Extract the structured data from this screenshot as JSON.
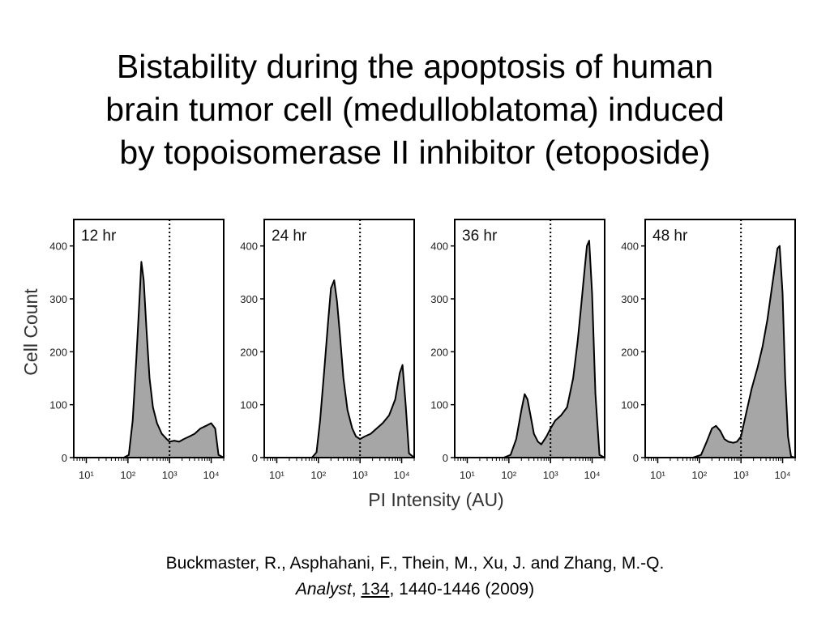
{
  "slide": {
    "title_lines": [
      "Bistability during the apoptosis of human",
      "brain tumor cell (medulloblatoma) induced",
      "by topoisomerase II inhibitor (etoposide)"
    ],
    "citation": {
      "authors": "Buckmaster, R., Asphahani, F., Thein, M., Xu, J. and Zhang, M.-Q.",
      "journal": "Analyst",
      "sep1": ", ",
      "volume": "134",
      "pages_year": ", 1440-1446 (2009)"
    }
  },
  "chart_data": {
    "type": "area",
    "ylabel": "Cell Count",
    "xlabel": "PI Intensity (AU)",
    "x_scale": "log",
    "xlim": [
      5,
      20000
    ],
    "ylim": [
      0,
      450
    ],
    "x_ticks": [
      10,
      100,
      1000,
      10000
    ],
    "x_tick_labels": [
      "10¹",
      "10²",
      "10³",
      "10⁴"
    ],
    "y_ticks": [
      0,
      100,
      200,
      300,
      400
    ],
    "threshold_x": 1000,
    "fill_color": "#a6a6a6",
    "line_color": "#000000",
    "panels": [
      {
        "label": "12 hr",
        "x": [
          5,
          80,
          105,
          130,
          160,
          190,
          210,
          240,
          280,
          330,
          400,
          500,
          650,
          850,
          1000,
          1300,
          1700,
          2200,
          3000,
          4000,
          5500,
          7500,
          10000,
          12500,
          15000,
          20000
        ],
        "y": [
          0,
          0,
          5,
          70,
          190,
          300,
          370,
          335,
          240,
          150,
          95,
          65,
          45,
          35,
          30,
          32,
          30,
          35,
          40,
          45,
          55,
          60,
          65,
          55,
          5,
          0
        ]
      },
      {
        "label": "24 hr",
        "x": [
          5,
          70,
          90,
          110,
          140,
          170,
          200,
          240,
          280,
          330,
          400,
          500,
          650,
          800,
          1000,
          1300,
          1800,
          2500,
          3500,
          5000,
          7000,
          9000,
          10500,
          12500,
          15000,
          20000
        ],
        "y": [
          0,
          0,
          10,
          70,
          170,
          255,
          320,
          335,
          295,
          230,
          150,
          90,
          55,
          40,
          35,
          40,
          45,
          55,
          65,
          80,
          110,
          160,
          175,
          100,
          8,
          0
        ]
      },
      {
        "label": "36 hr",
        "x": [
          5,
          75,
          110,
          150,
          200,
          240,
          280,
          330,
          400,
          500,
          600,
          800,
          1000,
          1300,
          1800,
          2500,
          3500,
          4500,
          5500,
          6500,
          7500,
          8500,
          10000,
          12000,
          15000,
          20000
        ],
        "y": [
          0,
          0,
          5,
          35,
          90,
          120,
          110,
          80,
          45,
          30,
          25,
          40,
          55,
          70,
          80,
          95,
          150,
          220,
          290,
          350,
          400,
          410,
          310,
          120,
          5,
          0
        ]
      },
      {
        "label": "48 hr",
        "x": [
          5,
          70,
          110,
          150,
          200,
          250,
          320,
          400,
          500,
          650,
          800,
          1000,
          1300,
          1800,
          2500,
          3300,
          4300,
          5500,
          6500,
          7500,
          8500,
          10000,
          11500,
          13500,
          16000,
          20000
        ],
        "y": [
          0,
          0,
          5,
          30,
          55,
          60,
          50,
          35,
          30,
          28,
          30,
          40,
          80,
          130,
          170,
          210,
          260,
          320,
          360,
          395,
          400,
          310,
          150,
          40,
          2,
          0
        ]
      }
    ]
  }
}
